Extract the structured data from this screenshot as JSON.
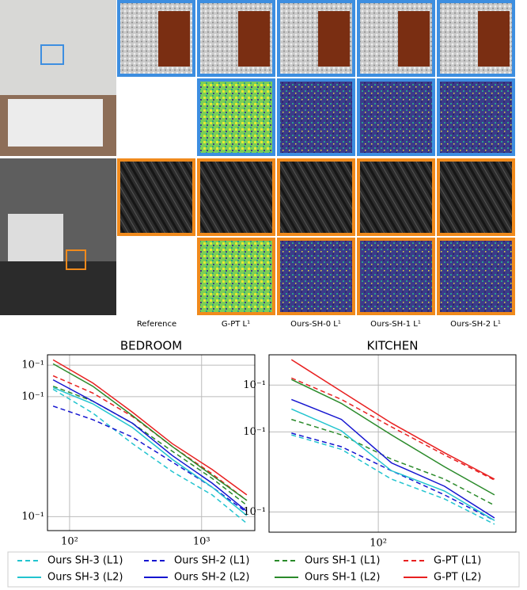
{
  "figure": {
    "column_labels": [
      "Reference",
      "G-PT L¹",
      "Ours-SH-0 L¹",
      "Ours-SH-1 L¹",
      "Ours-SH-2 L¹"
    ]
  },
  "chart_data": [
    {
      "type": "line",
      "title": "BEDROOM",
      "log_x": true,
      "log_y": true,
      "grid": true,
      "xlim": [
        68,
        2530
      ],
      "ylim": [
        0.088,
        0.44
      ],
      "xticks": [
        {
          "value": 100,
          "label": "10²"
        },
        {
          "value": 1000,
          "label": "10³"
        }
      ],
      "yticks": [
        {
          "value": 0.1,
          "label": "10⁻¹"
        },
        {
          "value": 0.3,
          "label": "10⁻¹"
        },
        {
          "value": 0.4,
          "label": "10⁻¹"
        }
      ],
      "x": [
        75,
        150,
        300,
        600,
        1200,
        2200
      ],
      "series": [
        {
          "name": "Ours SH-3 (L1)",
          "color": "#22c4cf",
          "linestyle": "dashed",
          "values": [
            0.321,
            0.258,
            0.195,
            0.151,
            0.122,
            0.094
          ]
        },
        {
          "name": "Ours SH-2 (L1)",
          "color": "#1515d0",
          "linestyle": "dashed",
          "values": [
            0.275,
            0.243,
            0.207,
            0.165,
            0.131,
            0.104
          ]
        },
        {
          "name": "Ours SH-1 (L1)",
          "color": "#2a8a2a",
          "linestyle": "dashed",
          "values": [
            0.33,
            0.288,
            0.235,
            0.182,
            0.142,
            0.111
          ]
        },
        {
          "name": "G-PT (L1)",
          "color": "#e82020",
          "linestyle": "dashed",
          "values": [
            0.363,
            0.31,
            0.25,
            0.19,
            0.148,
            0.116
          ]
        },
        {
          "name": "Ours SH-3 (L2)",
          "color": "#22c4cf",
          "linestyle": "solid",
          "values": [
            0.326,
            0.281,
            0.226,
            0.169,
            0.131,
            0.101
          ]
        },
        {
          "name": "Ours SH-2 (L2)",
          "color": "#1515d0",
          "linestyle": "solid",
          "values": [
            0.35,
            0.288,
            0.235,
            0.175,
            0.136,
            0.105
          ]
        },
        {
          "name": "Ours SH-1 (L2)",
          "color": "#2a8a2a",
          "linestyle": "solid",
          "values": [
            0.405,
            0.33,
            0.252,
            0.19,
            0.146,
            0.116
          ]
        },
        {
          "name": "G-PT (L2)",
          "color": "#e82020",
          "linestyle": "solid",
          "values": [
            0.42,
            0.34,
            0.26,
            0.195,
            0.154,
            0.122
          ]
        }
      ]
    },
    {
      "type": "line",
      "title": "KITCHEN",
      "log_x": true,
      "log_y": true,
      "grid": true,
      "xlim": [
        22,
        673
      ],
      "ylim": [
        0.084,
        0.39
      ],
      "xticks": [
        {
          "value": 100,
          "label": "10²"
        }
      ],
      "yticks": [
        {
          "value": 0.1,
          "label": "10⁻¹"
        },
        {
          "value": 0.2,
          "label": "10⁻¹"
        },
        {
          "value": 0.3,
          "label": "10⁻¹"
        }
      ],
      "x": [
        30,
        60,
        120,
        250,
        500
      ],
      "series": [
        {
          "name": "Ours SH-3 (L1)",
          "color": "#22c4cf",
          "linestyle": "dashed",
          "values": [
            0.195,
            0.172,
            0.133,
            0.112,
            0.09
          ]
        },
        {
          "name": "Ours SH-2 (L1)",
          "color": "#1515d0",
          "linestyle": "dashed",
          "values": [
            0.198,
            0.176,
            0.143,
            0.116,
            0.093
          ]
        },
        {
          "name": "Ours SH-1 (L1)",
          "color": "#2a8a2a",
          "linestyle": "dashed",
          "values": [
            0.223,
            0.195,
            0.158,
            0.133,
            0.106
          ]
        },
        {
          "name": "G-PT (L1)",
          "color": "#e82020",
          "linestyle": "dashed",
          "values": [
            0.319,
            0.265,
            0.209,
            0.164,
            0.132
          ]
        },
        {
          "name": "Ours SH-3 (L2)",
          "color": "#22c4cf",
          "linestyle": "solid",
          "values": [
            0.244,
            0.202,
            0.143,
            0.12,
            0.093
          ]
        },
        {
          "name": "Ours SH-2 (L2)",
          "color": "#1515d0",
          "linestyle": "solid",
          "values": [
            0.265,
            0.223,
            0.153,
            0.125,
            0.095
          ]
        },
        {
          "name": "Ours SH-1 (L2)",
          "color": "#2a8a2a",
          "linestyle": "solid",
          "values": [
            0.315,
            0.256,
            0.195,
            0.148,
            0.116
          ]
        },
        {
          "name": "G-PT (L2)",
          "color": "#e82020",
          "linestyle": "solid",
          "values": [
            0.374,
            0.284,
            0.216,
            0.167,
            0.133
          ]
        }
      ]
    }
  ]
}
